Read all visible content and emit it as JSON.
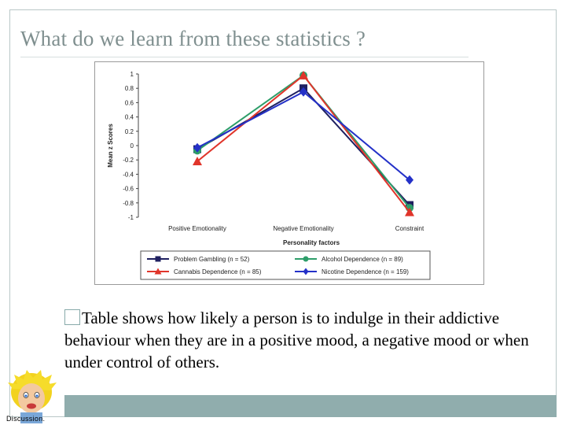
{
  "slide": {
    "title": "What do we learn from these statistics ?",
    "bullet_text": "Table shows how likely a person is to indulge in their addictive behaviour when they are in a positive mood, a negative mood or when under control of others.",
    "logo_caption": "Discussion."
  },
  "colors": {
    "frame": "#b9c7c7",
    "footer_bar": "#90adad",
    "title": "#7f8f8f"
  },
  "chart_data": {
    "type": "line",
    "title": "",
    "xlabel": "Personality factors",
    "ylabel": "Mean z Scores",
    "categories": [
      "Positive Emotionality",
      "Negative Emotionality",
      "Constraint"
    ],
    "yticks": [
      "1",
      "0.8",
      "0.6",
      "0.4",
      "0.2",
      "0",
      "-0.2",
      "-0.4",
      "-0.6",
      "-0.8",
      "-1"
    ],
    "ylim": [
      -1,
      1
    ],
    "grid": false,
    "legend_position": "bottom",
    "series": [
      {
        "name": "Problem Gambling (n = 52)",
        "color": "#1f2060",
        "marker": "square",
        "values": [
          -0.05,
          0.8,
          -0.83
        ]
      },
      {
        "name": "Alcohol Dependence (n = 89)",
        "color": "#2e9e6a",
        "marker": "circle",
        "values": [
          -0.07,
          0.98,
          -0.87
        ]
      },
      {
        "name": "Cannabis Dependence (n = 85)",
        "color": "#e0352b",
        "marker": "triangle",
        "values": [
          -0.22,
          0.98,
          -0.93
        ]
      },
      {
        "name": "Nicotine Dependence (n = 159)",
        "color": "#2431c8",
        "marker": "diamond",
        "values": [
          -0.03,
          0.75,
          -0.48
        ]
      }
    ]
  }
}
